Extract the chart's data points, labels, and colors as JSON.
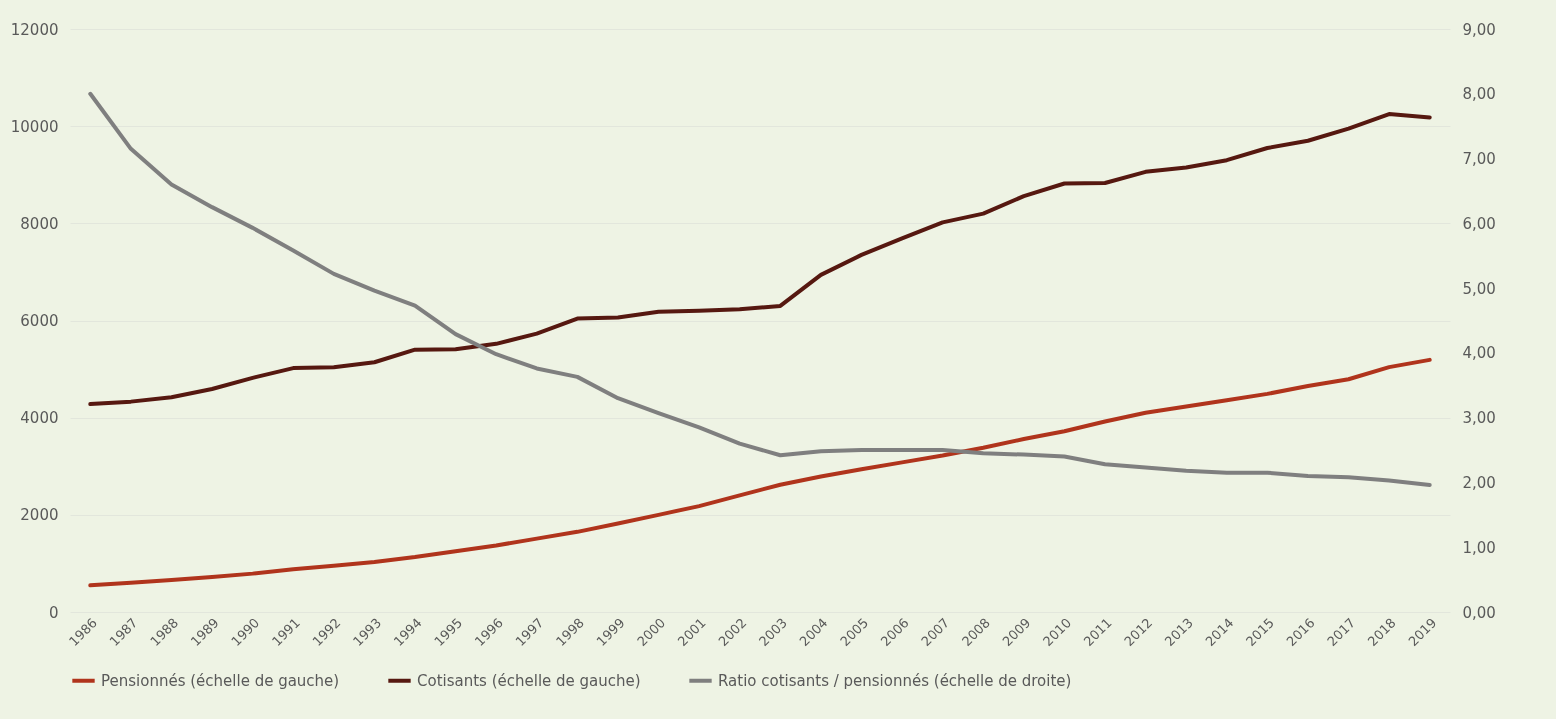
{
  "chart_data": {
    "type": "line",
    "categories": [
      "1986",
      "1987",
      "1988",
      "1989",
      "1990",
      "1991",
      "1992",
      "1993",
      "1994",
      "1995",
      "1996",
      "1997",
      "1998",
      "1999",
      "2000",
      "2001",
      "2002",
      "2003",
      "2004",
      "2005",
      "2006",
      "2007",
      "2008",
      "2009",
      "2010",
      "2011",
      "2012",
      "2013",
      "2014",
      "2015",
      "2016",
      "2017",
      "2018",
      "2019"
    ],
    "series": [
      {
        "name": "Pensionnés (échelle de gauche)",
        "color": "#b0341c",
        "values": [
          550,
          600,
          660,
          720,
          790,
          880,
          950,
          1030,
          1130,
          1250,
          1370,
          1510,
          1650,
          1820,
          2000,
          2180,
          2400,
          2620,
          2790,
          2940,
          3080,
          3220,
          3380,
          3560,
          3720,
          3920,
          4100,
          4230,
          4360,
          4490,
          4650,
          4790,
          5040,
          5190
        ]
      },
      {
        "name": "Cotisants (échelle de gauche)",
        "color": "#561810",
        "values": [
          4280,
          4330,
          4420,
          4590,
          4820,
          5020,
          5040,
          5140,
          5400,
          5410,
          5520,
          5730,
          6040,
          6060,
          6180,
          6200,
          6230,
          6300,
          6940,
          7350,
          7690,
          8020,
          8200,
          8560,
          8820,
          8830,
          9060,
          9150,
          9300,
          9550,
          9700,
          9950,
          10250,
          10180
        ]
      },
      {
        "name": "Ratio cotisants / pensionnés (échelle de droite)",
        "color": "#7f7f7f",
        "axis": "y2",
        "values": [
          8.0,
          7.15,
          6.6,
          6.25,
          5.93,
          5.58,
          5.22,
          4.96,
          4.73,
          4.29,
          3.98,
          3.76,
          3.63,
          3.3,
          3.07,
          2.85,
          2.6,
          2.42,
          2.48,
          2.5,
          2.5,
          2.5,
          2.45,
          2.43,
          2.4,
          2.28,
          2.23,
          2.18,
          2.15,
          2.15,
          2.1,
          2.08,
          2.03,
          1.96
        ]
      }
    ],
    "ylim": [
      0,
      12000
    ],
    "yticks": [
      0,
      2000,
      4000,
      6000,
      8000,
      10000,
      12000
    ],
    "y2lim": [
      0,
      9
    ],
    "y2ticks": [
      {
        "value": 0,
        "label": "0,00"
      },
      {
        "value": 1,
        "label": "1,00"
      },
      {
        "value": 2,
        "label": "2,00"
      },
      {
        "value": 3,
        "label": "3,00"
      },
      {
        "value": 4,
        "label": "4,00"
      },
      {
        "value": 5,
        "label": "5,00"
      },
      {
        "value": 6,
        "label": "6,00"
      },
      {
        "value": 7,
        "label": "7,00"
      },
      {
        "value": 8,
        "label": "8,00"
      },
      {
        "value": 9,
        "label": "9,00"
      }
    ],
    "grid": "y",
    "legend": "bottom",
    "line_style": "solid"
  }
}
